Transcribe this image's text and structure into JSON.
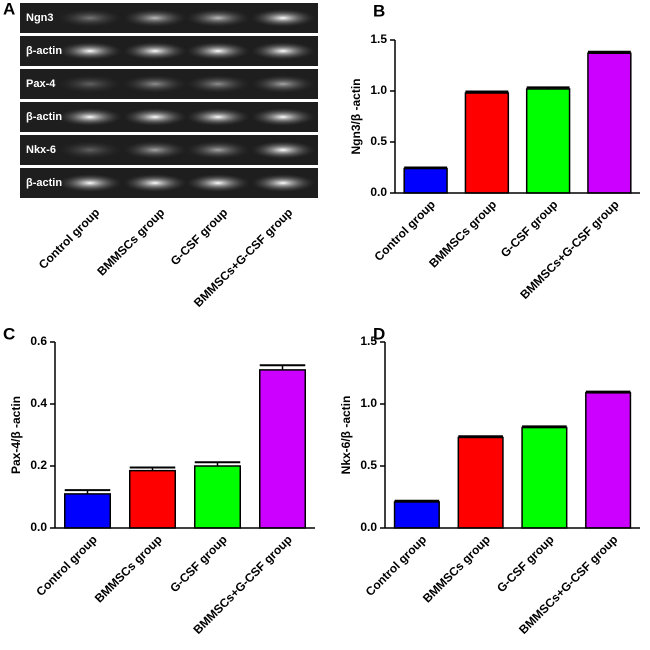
{
  "gel": {
    "panel": "A",
    "lanes": [
      "Ngn3",
      "β-actin",
      "Pax-4",
      "β-actin",
      "Nkx-6",
      "β-actin"
    ],
    "categories": [
      "Control group",
      "BMMSCs group",
      "G-CSF group",
      "BMMSCs+G-CSF group"
    ]
  },
  "chart_data": [
    {
      "type": "bar",
      "panel": "B",
      "ylabel": "Ngn3/β -actin",
      "categories": [
        "Control group",
        "BMMSCs group",
        "G-CSF group",
        "BMMSCs+G-CSF group"
      ],
      "values": [
        0.24,
        0.98,
        1.02,
        1.37
      ],
      "errors": [
        0.01,
        0.015,
        0.015,
        0.015
      ],
      "colors": [
        "#0000ff",
        "#ff0000",
        "#00ff00",
        "#cc00ff"
      ],
      "ylim": [
        0,
        1.5
      ],
      "yticks": [
        {
          "value": 0,
          "label": "0.0"
        },
        0.5,
        {
          "value": 1,
          "label": "1.0"
        },
        1.5
      ]
    },
    {
      "type": "bar",
      "panel": "C",
      "ylabel": "Pax-4/β -actin",
      "categories": [
        "Control group",
        "BMMSCs group",
        "G-CSF group",
        "BMMSCs+G-CSF group"
      ],
      "values": [
        0.11,
        0.185,
        0.2,
        0.51
      ],
      "errors": [
        0.012,
        0.01,
        0.012,
        0.015
      ],
      "colors": [
        "#0000ff",
        "#ff0000",
        "#00ff00",
        "#cc00ff"
      ],
      "ylim": [
        0,
        0.6
      ],
      "yticks": [
        {
          "value": 0,
          "label": "0.0"
        },
        0.2,
        0.4,
        0.6
      ]
    },
    {
      "type": "bar",
      "panel": "D",
      "ylabel": "Nkx-6/β -actin",
      "categories": [
        "Control group",
        "BMMSCs group",
        "G-CSF group",
        "BMMSCs+G-CSF group"
      ],
      "values": [
        0.21,
        0.73,
        0.81,
        1.09
      ],
      "errors": [
        0.01,
        0.01,
        0.01,
        0.01
      ],
      "colors": [
        "#0000ff",
        "#ff0000",
        "#00ff00",
        "#cc00ff"
      ],
      "ylim": [
        0,
        1.5
      ],
      "yticks": [
        {
          "value": 0,
          "label": "0.0"
        },
        0.5,
        {
          "value": 1,
          "label": "1.0"
        },
        1.5
      ]
    }
  ]
}
